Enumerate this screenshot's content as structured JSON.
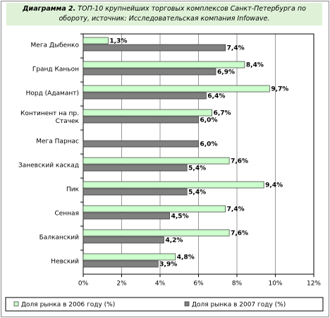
{
  "chart_data": {
    "type": "hbar",
    "title_prefix": "Диаграмма 2.",
    "title": "ТОП-10 крупнейших торговых комплексов Санкт-Петербурга по обороту, источник: Исследовательская компания Infowave.",
    "categories": [
      "Мега Дыбенко",
      "Гранд Каньон",
      "Норд (Адамант)",
      "Континент на пр. Стачек",
      "Мега Парнас",
      "Заневский каскад",
      "Пик",
      "Сенная",
      "Балканский",
      "Невский"
    ],
    "series": [
      {
        "name": "Доля рынка в 2006 году (%)",
        "color": "#ccffcc",
        "values": [
          1.3,
          8.4,
          9.7,
          6.7,
          null,
          7.6,
          9.4,
          7.4,
          7.6,
          4.8
        ],
        "value_labels": [
          "1,3%",
          "8,4%",
          "9,7%",
          "6,7%",
          null,
          "7,6%",
          "9,4%",
          "7,4%",
          "7,6%",
          "4,8%"
        ]
      },
      {
        "name": "Доля рынка в 2007 году (%)",
        "color": "#808080",
        "values": [
          7.4,
          6.9,
          6.4,
          6.0,
          6.0,
          5.4,
          5.4,
          4.5,
          4.2,
          3.9
        ],
        "value_labels": [
          "7,4%",
          "6,9%",
          "6,4%",
          "6,0%",
          "6,0%",
          "5,4%",
          "5,4%",
          "4,5%",
          "4,2%",
          "3,9%"
        ]
      }
    ],
    "xlim": [
      0,
      12
    ],
    "xticks": [
      {
        "value": 0,
        "label": "0%"
      },
      {
        "value": 2,
        "label": "2%"
      },
      {
        "value": 4,
        "label": "4%"
      },
      {
        "value": 6,
        "label": "6%"
      },
      {
        "value": 8,
        "label": "8%"
      },
      {
        "value": 10,
        "label": "10%"
      },
      {
        "value": 12,
        "label": "12%"
      }
    ],
    "grid": true,
    "legend": "bottom"
  }
}
